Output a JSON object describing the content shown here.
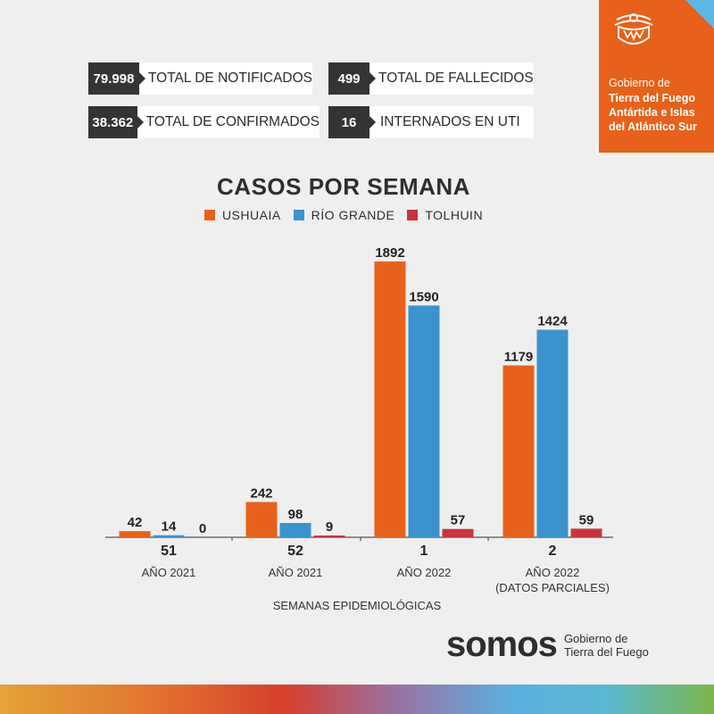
{
  "stats": [
    {
      "value": "79.998",
      "label": "TOTAL DE NOTIFICADOS"
    },
    {
      "value": "499",
      "label": "TOTAL DE FALLECIDOS"
    },
    {
      "value": "38.362",
      "label": "TOTAL DE CONFIRMADOS"
    },
    {
      "value": "16",
      "label": "INTERNADOS EN UTI"
    }
  ],
  "government": {
    "line1": "Gobierno de",
    "line2": "Tierra del Fuego Antártida e Islas del Atlántico Sur"
  },
  "footer": {
    "brand": "somos",
    "subtitle_line1": "Gobierno de",
    "subtitle_line2": "Tierra del Fuego"
  },
  "chart_data": {
    "type": "bar",
    "title": "CASOS POR SEMANA",
    "xlabel": "SEMANAS EPIDEMIOLÓGICAS",
    "ylabel": "",
    "ylim": [
      0,
      1892
    ],
    "categories": [
      "51",
      "52",
      "1",
      "2"
    ],
    "category_sublabels": [
      [
        "AÑO 2021"
      ],
      [
        "AÑO 2021"
      ],
      [
        "AÑO 2022"
      ],
      [
        "AÑO 2022",
        "(DATOS PARCIALES)"
      ]
    ],
    "series": [
      {
        "name": "USHUAIA",
        "color": "#e8611a",
        "values": [
          42,
          242,
          1892,
          1179
        ]
      },
      {
        "name": "RÍO GRANDE",
        "color": "#3a93cf",
        "values": [
          14,
          98,
          1590,
          1424
        ]
      },
      {
        "name": "TOLHUIN",
        "color": "#c9343c",
        "values": [
          0,
          9,
          57,
          59
        ]
      }
    ],
    "legend_position": "top-center"
  }
}
